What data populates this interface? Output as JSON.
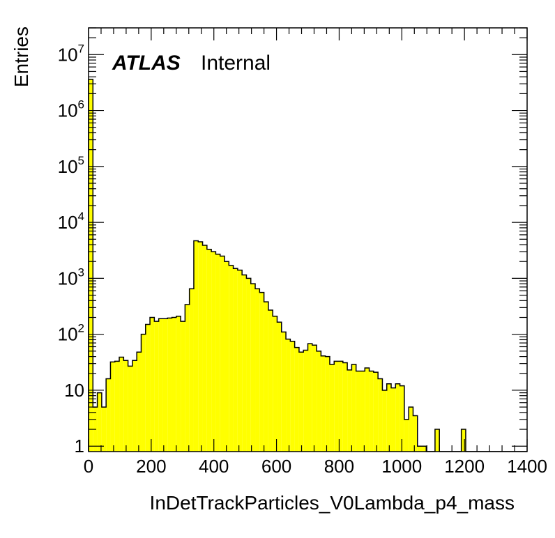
{
  "chart_data": {
    "type": "histogram",
    "xlabel": "InDetTrackParticles_V0Lambda_p4_mass",
    "ylabel": "Entries",
    "xlim": [
      0,
      1400
    ],
    "ylim": [
      0.8,
      30000000
    ],
    "y_scale": "log",
    "fill_color": "#ffff00",
    "line_color": "#000000",
    "grid": false,
    "x_ticks": [
      {
        "value": 0,
        "label": "0"
      },
      {
        "value": 200,
        "label": "200"
      },
      {
        "value": 400,
        "label": "400"
      },
      {
        "value": 600,
        "label": "600"
      },
      {
        "value": 800,
        "label": "800"
      },
      {
        "value": 1000,
        "label": "1000"
      },
      {
        "value": 1200,
        "label": "1200"
      },
      {
        "value": 1400,
        "label": "1400"
      }
    ],
    "y_ticks": [
      {
        "value": 1,
        "base": "1",
        "exp": ""
      },
      {
        "value": 10,
        "base": "10",
        "exp": ""
      },
      {
        "value": 100,
        "base": "10",
        "exp": "2"
      },
      {
        "value": 1000,
        "base": "10",
        "exp": "3"
      },
      {
        "value": 10000,
        "base": "10",
        "exp": "4"
      },
      {
        "value": 100000,
        "base": "10",
        "exp": "5"
      },
      {
        "value": 1000000,
        "base": "10",
        "exp": "6"
      },
      {
        "value": 10000000,
        "base": "10",
        "exp": "7"
      }
    ],
    "annotation": {
      "bold": "ATLAS",
      "normal": "Internal"
    },
    "bin_width": 14,
    "bin_edges_start": 0,
    "values": [
      3600000,
      5,
      9,
      5,
      16,
      32,
      33,
      39,
      34,
      27,
      34,
      48,
      100,
      150,
      200,
      170,
      190,
      190,
      195,
      200,
      210,
      170,
      340,
      650,
      4700,
      4500,
      3900,
      3300,
      3000,
      2700,
      2500,
      2000,
      1700,
      1500,
      1400,
      1150,
      1000,
      800,
      650,
      560,
      380,
      270,
      210,
      165,
      110,
      82,
      75,
      58,
      48,
      52,
      68,
      64,
      50,
      41,
      40,
      29,
      33,
      33,
      31,
      23,
      29,
      22,
      22,
      25,
      22,
      21,
      16,
      10,
      13,
      11,
      13,
      12,
      3,
      5,
      3.5,
      1,
      1,
      0,
      0,
      2,
      0,
      0,
      0,
      0,
      0,
      2,
      0,
      0,
      0,
      0,
      0,
      0,
      0,
      0,
      0,
      0,
      0,
      0,
      0,
      0
    ]
  }
}
